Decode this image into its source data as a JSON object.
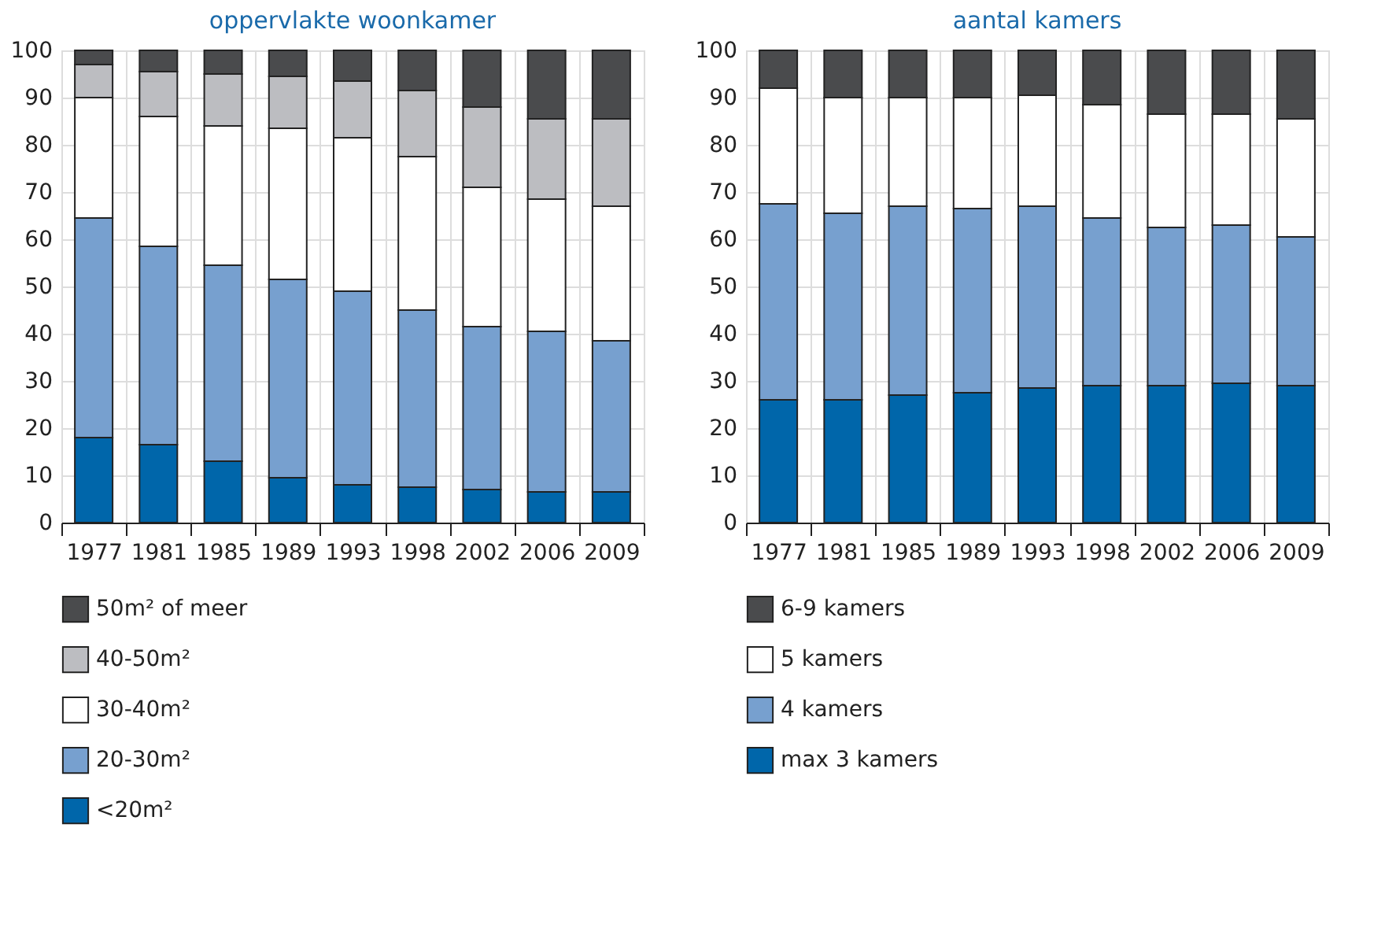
{
  "chart_data": [
    {
      "type": "bar",
      "stacked": true,
      "title": "oppervlakte woonkamer",
      "categories": [
        "1977",
        "1981",
        "1985",
        "1989",
        "1993",
        "1998",
        "2002",
        "2006",
        "2009"
      ],
      "ylim": [
        0,
        100
      ],
      "yticks": [
        0,
        10,
        20,
        30,
        40,
        50,
        60,
        70,
        80,
        90,
        100
      ],
      "grid": true,
      "legend": "bottom",
      "series": [
        {
          "name": "<20m²",
          "color": "#0066aa",
          "values": [
            18,
            16.5,
            13,
            9.5,
            8,
            7.5,
            7,
            6.5,
            6.5
          ]
        },
        {
          "name": "20-30m²",
          "color": "#77a0cf",
          "values": [
            46.5,
            42,
            41.5,
            42,
            41,
            37.5,
            34.5,
            34,
            32
          ]
        },
        {
          "name": "30-40m²",
          "color": "#ffffff",
          "values": [
            25.5,
            27.5,
            29.5,
            32,
            32.5,
            32.5,
            29.5,
            28,
            28.5
          ]
        },
        {
          "name": "40-50m²",
          "color": "#bcbdc1",
          "values": [
            7,
            9.5,
            11,
            11,
            12,
            14,
            17,
            17,
            18.5
          ]
        },
        {
          "name": "50m² of meer",
          "color": "#4a4b4d",
          "values": [
            3,
            4.5,
            5,
            5.5,
            6.5,
            8.5,
            12,
            14.5,
            14.5
          ]
        }
      ]
    },
    {
      "type": "bar",
      "stacked": true,
      "title": "aantal kamers",
      "categories": [
        "1977",
        "1981",
        "1985",
        "1989",
        "1993",
        "1998",
        "2002",
        "2006",
        "2009"
      ],
      "ylim": [
        0,
        100
      ],
      "yticks": [
        0,
        10,
        20,
        30,
        40,
        50,
        60,
        70,
        80,
        90,
        100
      ],
      "grid": true,
      "legend": "bottom",
      "series": [
        {
          "name": "max 3 kamers",
          "color": "#0066aa",
          "values": [
            26,
            26,
            27,
            27.5,
            28.5,
            29,
            29,
            29.5,
            29
          ]
        },
        {
          "name": "4 kamers",
          "color": "#77a0cf",
          "values": [
            41.5,
            39.5,
            40,
            39,
            38.5,
            35.5,
            33.5,
            33.5,
            31.5
          ]
        },
        {
          "name": "5 kamers",
          "color": "#ffffff",
          "values": [
            24.5,
            24.5,
            23,
            23.5,
            23.5,
            24,
            24,
            23.5,
            25
          ]
        },
        {
          "name": "6-9 kamers",
          "color": "#4a4b4d",
          "values": [
            8,
            10,
            10,
            10,
            9.5,
            11.5,
            13.5,
            13.5,
            14.5
          ]
        }
      ]
    }
  ]
}
